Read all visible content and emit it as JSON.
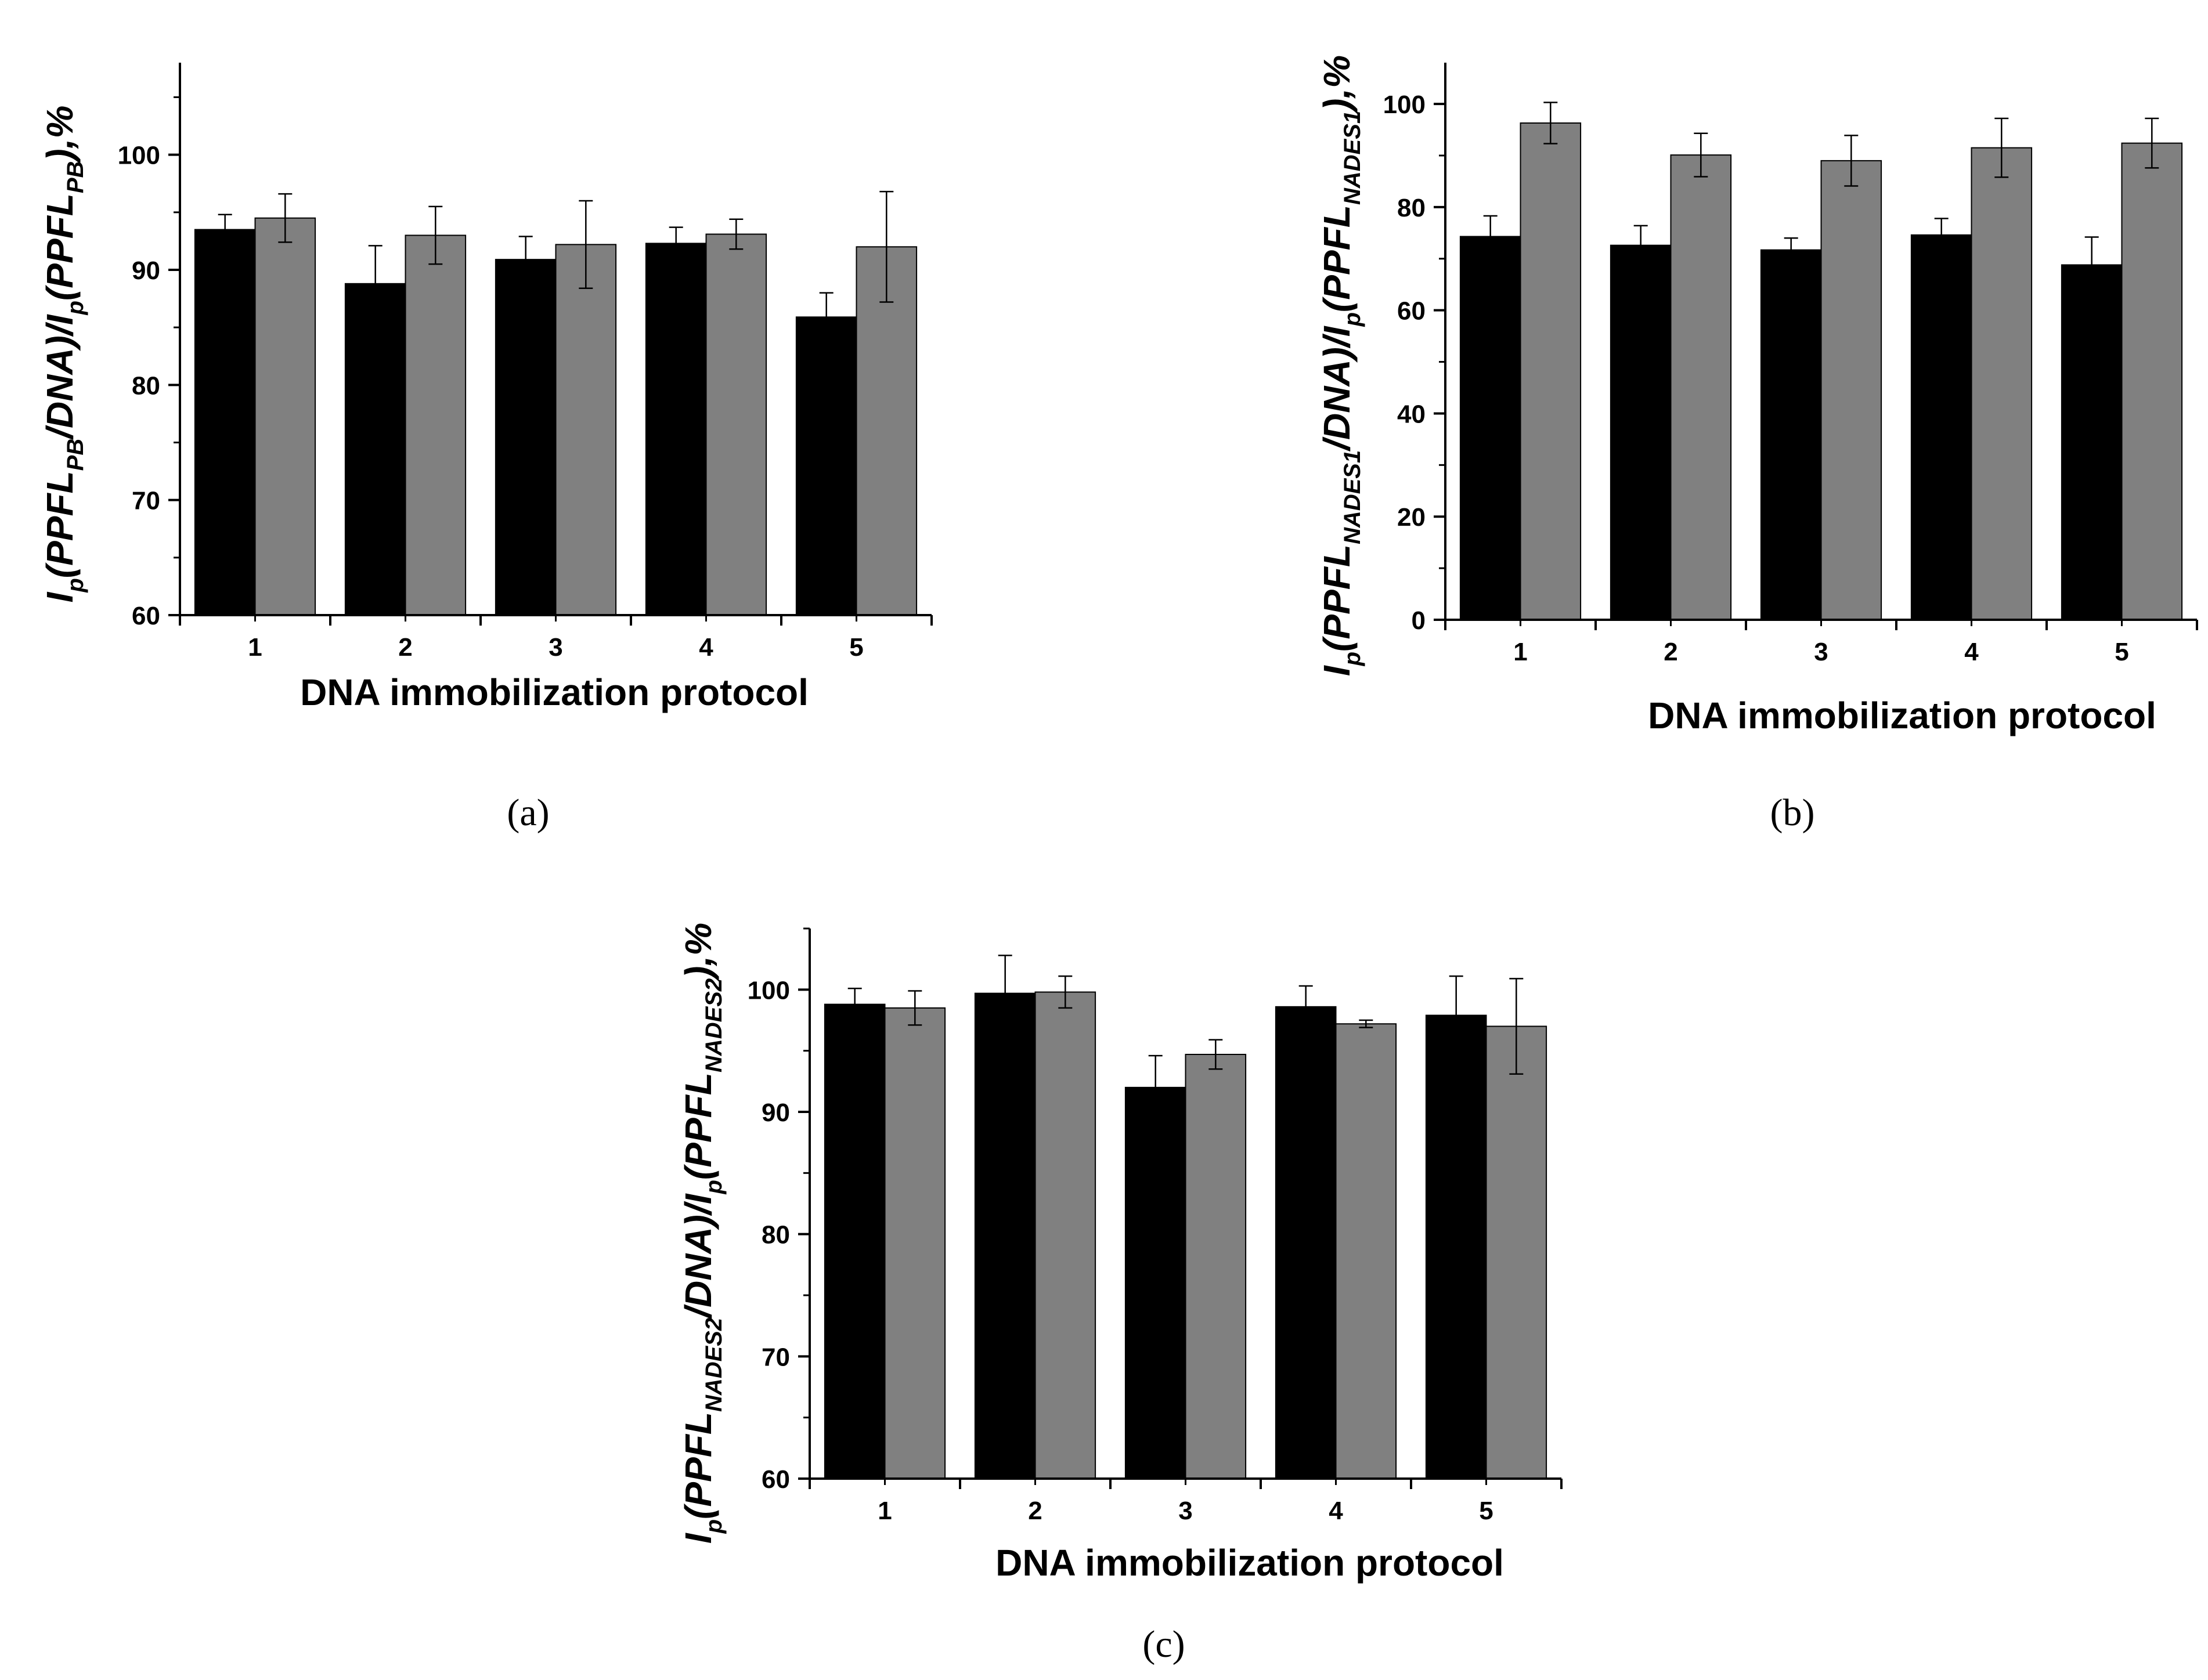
{
  "colors": {
    "series_a": "#000000",
    "series_b": "#808080",
    "axis": "#000000"
  },
  "chart_data": [
    {
      "id": "a",
      "type": "bar",
      "caption": "(a)",
      "categories": [
        "1",
        "2",
        "3",
        "4",
        "5"
      ],
      "series": [
        {
          "name": "black",
          "values": [
            93.5,
            88.8,
            90.9,
            92.3,
            85.9
          ],
          "errors": [
            1.3,
            3.3,
            2.0,
            1.4,
            2.1
          ]
        },
        {
          "name": "gray",
          "values": [
            94.5,
            93.0,
            92.2,
            93.1,
            92.0
          ],
          "errors": [
            2.1,
            2.5,
            3.8,
            1.3,
            4.8
          ]
        }
      ],
      "xlabel": "DNA immobilization protocol",
      "ylabel": {
        "p1": "I",
        "s1": "p",
        "p2": "(PPFL",
        "s2": "PB",
        "p3": "/DNA)/I",
        "s3": "p",
        "p4": "(PPFL",
        "s4": "PB",
        "p5": "),%"
      },
      "ylim": [
        60,
        108
      ],
      "yticks": [
        60,
        70,
        80,
        90,
        100
      ],
      "ytick_labels": [
        "60",
        "70",
        "80",
        "90",
        "100"
      ]
    },
    {
      "id": "b",
      "type": "bar",
      "caption": "(b)",
      "categories": [
        "1",
        "2",
        "3",
        "4",
        "5"
      ],
      "series": [
        {
          "name": "black",
          "values": [
            74.3,
            72.6,
            71.7,
            74.6,
            68.8
          ],
          "errors": [
            4.0,
            3.8,
            2.3,
            3.2,
            5.4
          ]
        },
        {
          "name": "gray",
          "values": [
            96.3,
            90.1,
            89.0,
            91.5,
            92.4
          ],
          "errors": [
            4.0,
            4.2,
            4.9,
            5.7,
            4.8
          ]
        }
      ],
      "xlabel": "DNA immobilization protocol",
      "ylabel": {
        "p1": "I",
        "s1": "p",
        "p2": "(PPFL",
        "s2": "NADES1",
        "p3": "/DNA)/I",
        "s3": "p",
        "p4": "(PPFL",
        "s4": "NADES1",
        "p5": "),%"
      },
      "ylim": [
        0,
        108
      ],
      "yticks": [
        0,
        20,
        40,
        60,
        80,
        100
      ],
      "ytick_labels": [
        "0",
        "20",
        "40",
        "60",
        "80",
        "100"
      ]
    },
    {
      "id": "c",
      "type": "bar",
      "caption": "(c)",
      "categories": [
        "1",
        "2",
        "3",
        "4",
        "5"
      ],
      "series": [
        {
          "name": "black",
          "values": [
            98.8,
            99.7,
            92.0,
            98.6,
            97.9
          ],
          "errors": [
            1.3,
            3.1,
            2.6,
            1.7,
            3.2
          ]
        },
        {
          "name": "gray",
          "values": [
            98.5,
            99.8,
            94.7,
            97.2,
            97.0
          ],
          "errors": [
            1.4,
            1.3,
            1.2,
            0.3,
            3.9
          ]
        }
      ],
      "xlabel": "DNA immobilization protocol",
      "ylabel": {
        "p1": "I",
        "s1": "p",
        "p2": "(PPFL",
        "s2": "NADES2",
        "p3": "/DNA)/I",
        "s3": "p",
        "p4": "(PPFL",
        "s4": "NADES2",
        "p5": "),%"
      },
      "ylim": [
        60,
        105
      ],
      "yticks": [
        60,
        70,
        80,
        90,
        100
      ],
      "ytick_labels": [
        "60",
        "70",
        "80",
        "90",
        "100"
      ]
    }
  ]
}
